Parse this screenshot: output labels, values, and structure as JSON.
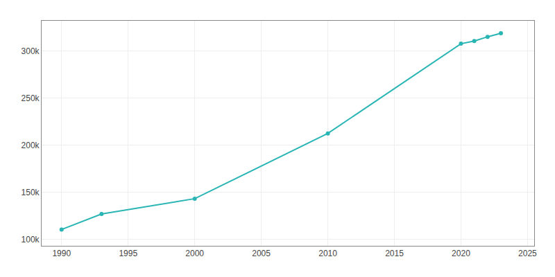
{
  "chart_data": {
    "type": "line",
    "x": [
      1990,
      1993,
      2000,
      2010,
      2020,
      2021,
      2022,
      2023
    ],
    "values": [
      110330,
      126853,
      143072,
      212375,
      307670,
      310469,
      314966,
      318755
    ],
    "color": "#2ab5b5",
    "marker": "circle",
    "xlim": [
      1988.5,
      2025.5
    ],
    "xticks": [
      1990,
      1995,
      2000,
      2005,
      2010,
      2015,
      2020,
      2025
    ],
    "ylim": [
      93000,
      332000
    ],
    "yticks": [
      {
        "value": 100000,
        "label": "100k"
      },
      {
        "value": 150000,
        "label": "150k"
      },
      {
        "value": 200000,
        "label": "200k"
      },
      {
        "value": 250000,
        "label": "250k"
      },
      {
        "value": 300000,
        "label": "300k"
      }
    ],
    "grid": true
  }
}
